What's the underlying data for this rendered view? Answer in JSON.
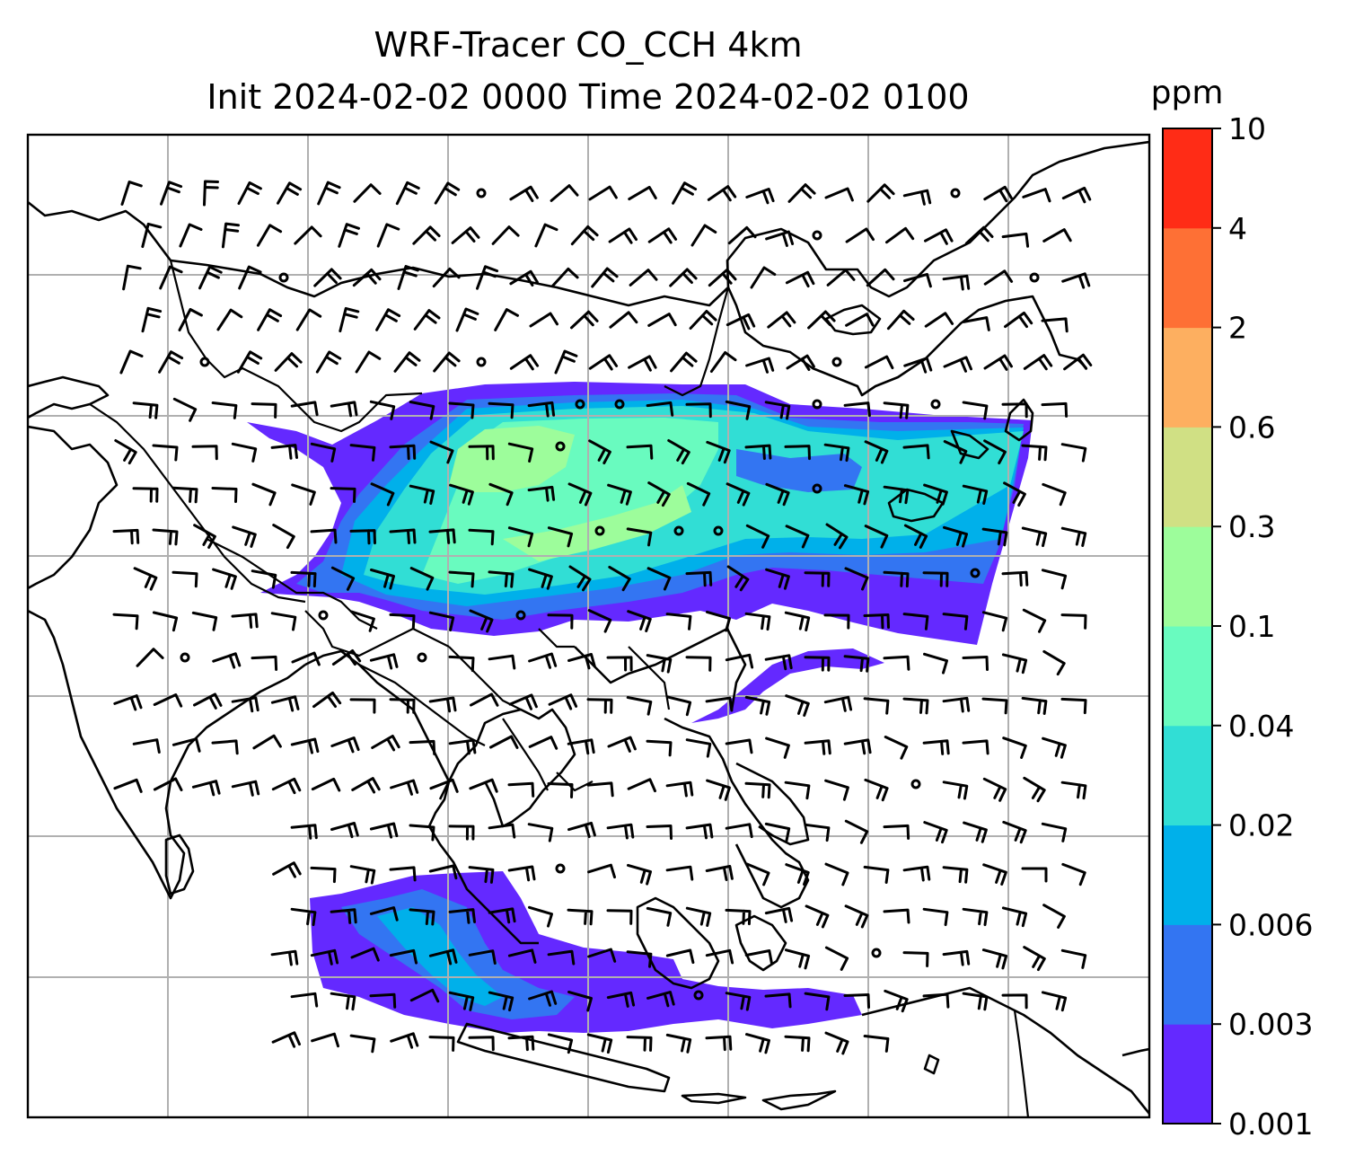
{
  "chart_data": {
    "type": "heatmap",
    "title_line1": "WRF-Tracer CO_CCH 4km",
    "title_line2": "Init 2024-02-02 0000 Time 2024-02-02 0100",
    "colorbar": {
      "label": "ppm",
      "levels": [
        "0.001",
        "0.003",
        "0.006",
        "0.02",
        "0.04",
        "0.1",
        "0.3",
        "0.6",
        "2",
        "4",
        "10"
      ],
      "colors": [
        "#6429ff",
        "#3375f2",
        "#00b0ea",
        "#31ded5",
        "#69fbbf",
        "#9dfd9b",
        "#d0e084",
        "#fdaf60",
        "#fe7035",
        "#ff2c16"
      ]
    },
    "grid": true,
    "overlays": [
      "coastlines",
      "country borders",
      "wind barbs"
    ]
  }
}
